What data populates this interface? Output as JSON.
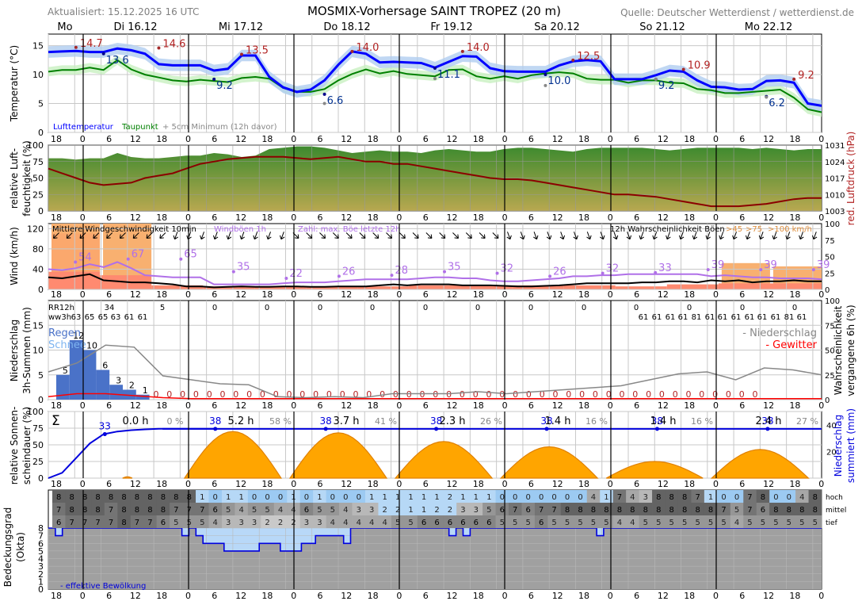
{
  "header": {
    "updated": "Aktualisiert: 15.12.2025 16 UTC",
    "title": "MOSMIX-Vorhersage SAINT TROPEZ (20 m)",
    "source": "Quelle: Deutscher Wetterdienst / wetterdienst.de"
  },
  "days": [
    "Mo",
    "Di 16.12",
    "Mi 17.12",
    "Do 18.12",
    "Fr 19.12",
    "Sa 20.12",
    "So 21.12",
    "Mo 22.12"
  ],
  "time_ticks": [
    "18",
    "0",
    "6",
    "12",
    "18",
    "0",
    "6",
    "12",
    "18",
    "0",
    "6",
    "12",
    "18",
    "0",
    "6",
    "12",
    "18",
    "0",
    "6",
    "12",
    "18",
    "0",
    "6",
    "12",
    "18",
    "0",
    "6",
    "12",
    "18",
    "0"
  ],
  "colors": {
    "temperature": "#0000ff",
    "dewpoint": "#008000",
    "pressure": "#8b0000",
    "humidity": "#4f8f3a",
    "gust": "#b070e8",
    "wind_fill": "#ff8a70",
    "gust_fill": "#f8b070",
    "sunshine": "#ffa500",
    "rain": "#4a72c8",
    "thunder": "#ff0000",
    "cloud_low": "#b8d8f8",
    "cloud_grey": "#a0a0a0"
  },
  "chart_data": [
    {
      "type": "line",
      "title": "Temperatur",
      "ylabel": "Temperatur (°C)",
      "ylim": [
        0,
        17
      ],
      "yticks": [
        0,
        5,
        10,
        15
      ],
      "x_hours": [
        0,
        3,
        6,
        9,
        12,
        15,
        18,
        21,
        24,
        27,
        30,
        33,
        36,
        39,
        42,
        45,
        48,
        51,
        54,
        57,
        60,
        63,
        66,
        69,
        72,
        75,
        78,
        81,
        84,
        87,
        90,
        93,
        96,
        99,
        102,
        105,
        108,
        111,
        114,
        117,
        120,
        123,
        126,
        129,
        132,
        135,
        138,
        141,
        144,
        147,
        150,
        153,
        156,
        159,
        162,
        165,
        168
      ],
      "series": [
        {
          "name": "Lufttemperatur",
          "values": [
            13.9,
            14.0,
            14.1,
            13.9,
            13.9,
            14.5,
            14.2,
            13.6,
            11.8,
            11.6,
            11.6,
            11.6,
            10.7,
            11.0,
            13.3,
            13.3,
            9.6,
            7.8,
            7.0,
            7.4,
            9.0,
            11.7,
            14.0,
            13.6,
            12.1,
            12.2,
            12.1,
            12.0,
            11.2,
            12.2,
            13.2,
            13.1,
            11.1,
            10.6,
            10.5,
            10.5,
            10.5,
            11.6,
            12.3,
            12.5,
            12.3,
            9.2,
            9.2,
            9.2,
            9.9,
            10.7,
            10.5,
            9.0,
            7.9,
            7.8,
            7.4,
            7.5,
            8.9,
            9.0,
            8.6,
            5.0,
            4.6
          ]
        },
        {
          "name": "Taupunkt",
          "values": [
            10.5,
            10.8,
            10.8,
            11.2,
            10.8,
            12.5,
            10.9,
            10.0,
            9.5,
            9.0,
            8.8,
            9.1,
            8.9,
            8.7,
            9.4,
            9.6,
            9.3,
            7.7,
            7.0,
            7.0,
            7.5,
            9.0,
            10.1,
            10.9,
            10.2,
            10.6,
            10.1,
            9.9,
            9.7,
            10.8,
            10.9,
            9.7,
            9.3,
            9.7,
            9.3,
            9.9,
            10.2,
            10.4,
            10.2,
            9.3,
            9.1,
            9.1,
            8.6,
            9.0,
            9.0,
            8.6,
            8.5,
            7.5,
            7.3,
            6.8,
            6.8,
            7.0,
            7.2,
            7.4,
            6.0,
            4.0,
            3.5
          ]
        }
      ],
      "labels_max": [
        {
          "x": "17 18",
          "value": "14.7"
        },
        {
          "x": "16 18",
          "value": "14.6"
        },
        {
          "x": "17 18",
          "value": "13.5"
        },
        {
          "x": "18 18",
          "value": "14.0"
        },
        {
          "x": "19 18",
          "value": "14.0"
        },
        {
          "x": "20 18",
          "value": "12.5"
        },
        {
          "x": "21 18",
          "value": "10.9"
        },
        {
          "x": "22 18",
          "value": "9.2"
        }
      ],
      "labels_min": [
        {
          "x": "16 06",
          "value": "13.6"
        },
        {
          "x": "17 06",
          "value": "9.2"
        },
        {
          "x": "18 06",
          "value": "6.6"
        },
        {
          "x": "19 06",
          "value": "11.1"
        },
        {
          "x": "20 06",
          "value": "10.0"
        },
        {
          "x": "21 06",
          "value": "9.2"
        },
        {
          "x": "22 06",
          "value": "6.2"
        }
      ],
      "ground_min": [
        5.0,
        9.3,
        8.1,
        9.2,
        6.1
      ],
      "legend": [
        "Lufttemperatur",
        "Taupunkt",
        "+ 5cm Minimum (12h davor)"
      ]
    },
    {
      "type": "area",
      "title": "Luftfeuchte / Luftdruck",
      "ylabel": "relative Luft- feuchtigkeit (%)",
      "y2label": "red. Luftdruck (hPa)",
      "ylim": [
        0,
        100
      ],
      "yticks": [
        0,
        25,
        50,
        75,
        100
      ],
      "y2lim": [
        1003,
        1031
      ],
      "y2ticks": [
        1003,
        1010,
        1017,
        1024,
        1031
      ],
      "series": [
        {
          "name": "Luftfeuchte",
          "values": [
            80,
            80,
            78,
            80,
            80,
            88,
            82,
            80,
            80,
            82,
            84,
            84,
            88,
            86,
            82,
            84,
            94,
            96,
            98,
            98,
            96,
            92,
            88,
            90,
            92,
            90,
            90,
            88,
            92,
            94,
            92,
            90,
            90,
            94,
            96,
            96,
            94,
            92,
            90,
            94,
            96,
            96,
            96,
            96,
            94,
            92,
            94,
            96,
            96,
            96,
            96,
            94,
            96,
            94,
            92,
            94,
            94
          ]
        },
        {
          "name": "Luftdruck",
          "values": [
            1021,
            1019,
            1017,
            1015,
            1014,
            1014.5,
            1015,
            1017,
            1018,
            1019,
            1021,
            1023,
            1024,
            1025,
            1025.5,
            1026,
            1026,
            1026,
            1025.5,
            1025,
            1025.5,
            1026,
            1025,
            1024,
            1024,
            1023,
            1023,
            1022,
            1021,
            1020,
            1019,
            1018,
            1017,
            1016.5,
            1016.5,
            1016,
            1015,
            1014,
            1013,
            1012,
            1011,
            1010,
            1010,
            1009.5,
            1009,
            1008,
            1007,
            1006,
            1005,
            1005,
            1005,
            1005.5,
            1006,
            1007,
            1008,
            1008.5,
            1008.5
          ]
        }
      ]
    },
    {
      "type": "line",
      "title": "Wind",
      "ylabel": "Wind (km/h)",
      "y2label": "Wahrscheinlichkeit Böen",
      "ylim": [
        0,
        130
      ],
      "yticks": [
        0,
        40,
        80,
        120
      ],
      "y2ticks": [
        0,
        25,
        50,
        75,
        100
      ],
      "legend": [
        "Mittlere Windgeschwindigkeit 10min",
        "Windböen 1h",
        "Zahl: max. Böe letzte 12h",
        "12h Wahrscheinlichkeit Böen",
        ">45",
        ">75",
        ">100 km/h"
      ],
      "gust_max_labels": [
        "54",
        "67",
        "65",
        "35",
        "22",
        "26",
        "28",
        "35",
        "32",
        "26",
        "32",
        "33",
        "39",
        "39",
        "39"
      ],
      "gust_prob_12h_gt45": [
        100,
        100,
        0,
        0,
        0,
        0,
        0,
        0,
        0,
        0,
        0,
        0,
        0,
        40,
        35
      ],
      "gust_prob_12h_gt75": [
        85,
        0,
        0,
        0,
        0,
        0,
        0,
        0,
        0,
        0,
        0,
        0,
        0,
        0,
        0
      ],
      "wind_fill": [
        35,
        28,
        8,
        6,
        5,
        5,
        6,
        8,
        8,
        8,
        8,
        6,
        10,
        12,
        12
      ],
      "series": [
        {
          "name": "Mittlere Windgeschwindigkeit 10min",
          "values": [
            24,
            22,
            26,
            30,
            18,
            16,
            14,
            14,
            12,
            10,
            6,
            6,
            4,
            5,
            6,
            5,
            5,
            6,
            6,
            5,
            5,
            6,
            6,
            6,
            8,
            10,
            8,
            10,
            10,
            10,
            8,
            8,
            8,
            7,
            6,
            6,
            7,
            8,
            10,
            12,
            12,
            12,
            12,
            14,
            14,
            16,
            16,
            14,
            18,
            16,
            18,
            14,
            16,
            16,
            18,
            16,
            16
          ]
        },
        {
          "name": "Windböen 1h",
          "values": [
            40,
            38,
            42,
            50,
            44,
            54,
            42,
            28,
            26,
            24,
            24,
            24,
            10,
            10,
            10,
            10,
            10,
            12,
            14,
            14,
            14,
            16,
            18,
            20,
            20,
            20,
            20,
            22,
            24,
            24,
            22,
            22,
            18,
            16,
            16,
            18,
            20,
            22,
            26,
            26,
            28,
            28,
            30,
            30,
            30,
            30,
            30,
            30,
            26,
            28,
            26,
            24,
            24,
            22,
            22,
            22,
            20
          ]
        }
      ]
    },
    {
      "type": "bar",
      "title": "Niederschlag",
      "ylabel": "Niederschlag 3h-Summen (mm)",
      "y2label": "Wahrscheinlichkeit vergangene 6h (%)",
      "ylim": [
        0,
        20
      ],
      "yticks": [
        0,
        5,
        10,
        15
      ],
      "y2ticks": [
        0,
        25,
        50,
        75,
        100
      ],
      "rr12h_label": "RR12h",
      "ww3h_label": "ww3h",
      "rr12h": [
        "34",
        "5",
        "0",
        "0",
        "0",
        "0",
        "0",
        "0",
        "0",
        "0",
        "0",
        "0",
        "0",
        "0"
      ],
      "ww3h": [
        "63",
        "65",
        "65",
        "63",
        "61",
        "61",
        "61",
        "61",
        "61",
        "61",
        "81",
        "61",
        "61",
        "61",
        "61",
        "61",
        "61",
        "81",
        "61"
      ],
      "legend": [
        "Regen",
        "Schnee",
        "- Niederschlag",
        "- Gewitter"
      ],
      "bar_values": [
        5,
        12,
        10,
        6,
        3,
        2,
        1,
        0,
        0,
        0,
        0,
        0,
        0,
        0,
        0,
        0,
        0,
        0,
        0,
        0,
        0,
        0,
        0,
        0,
        0,
        0,
        0,
        0,
        0,
        0,
        0,
        0,
        0,
        0,
        0,
        0,
        0,
        0,
        0,
        0,
        0,
        0,
        0,
        0,
        0,
        0,
        0,
        0,
        0,
        0,
        0,
        0,
        0,
        0
      ],
      "prob_6h": [
        28,
        37,
        55,
        53,
        24,
        20,
        16,
        15,
        3,
        2,
        3,
        2,
        6,
        6,
        6,
        8,
        6,
        8,
        10,
        12,
        14,
        20,
        26,
        28,
        20,
        32,
        30,
        25
      ],
      "thunder_prob_6h": [
        3,
        6,
        6,
        4,
        2,
        1,
        1,
        1,
        1,
        1,
        1,
        1,
        1,
        1,
        1,
        1,
        1,
        1,
        1,
        1,
        1,
        1,
        1,
        1,
        1,
        1,
        1,
        1
      ]
    },
    {
      "type": "area",
      "title": "Sonnenscheindauer",
      "ylabel": "relative Sonnen- scheindauer (%)",
      "y2label": "Niederschlag summiert (mm)",
      "ylim": [
        0,
        100
      ],
      "yticks": [
        0,
        25,
        50,
        75,
        100
      ],
      "y2ticks": [
        0,
        20,
        40
      ],
      "sigma": "Σ",
      "daily_sun_hours": [
        "0.0 h",
        "5.2 h",
        "3.7 h",
        "2.3 h",
        "1.4 h",
        "1.4 h",
        "2.4 h"
      ],
      "daily_sun_percent": [
        "0 %",
        "58 %",
        "41 %",
        "26 %",
        "16 %",
        "16 %",
        "27 %"
      ],
      "precip_sum_labels": [
        "33",
        "38",
        "38",
        "38",
        "38",
        "38",
        "38"
      ],
      "sunshine_days": [
        {
          "peak": 2,
          "width": 1
        },
        {
          "peak": 70,
          "width": 10
        },
        {
          "peak": 68,
          "width": 10
        },
        {
          "peak": 55,
          "width": 10
        },
        {
          "peak": 47,
          "width": 10
        },
        {
          "peak": 25,
          "width": 10
        },
        {
          "peak": 43,
          "width": 10
        }
      ],
      "precip_sum_curve": [
        0,
        4,
        15,
        26,
        33,
        35,
        36,
        36.6,
        37,
        37,
        37,
        37,
        37
      ]
    },
    {
      "type": "heatmap",
      "title": "Bedeckungsgrad",
      "ylabel": "Bedeckungsgrad (Okta)",
      "yticks": [
        0,
        1,
        2,
        3,
        4,
        5,
        6,
        7,
        8
      ],
      "rows": [
        "hoch",
        "mittel",
        "tief"
      ],
      "legend": [
        "- effektive Bewölkung"
      ],
      "hoch": [
        8,
        8,
        8,
        8,
        8,
        8,
        8,
        8,
        8,
        8,
        8,
        1,
        0,
        1,
        1,
        0,
        0,
        0,
        1,
        0,
        1,
        0,
        0,
        0,
        1,
        1,
        1,
        1,
        1,
        1,
        2,
        1,
        1,
        1,
        0,
        0,
        0,
        0,
        0,
        0,
        0,
        4,
        1,
        7,
        4,
        3,
        8,
        8,
        8,
        7,
        1,
        0,
        0,
        7,
        8,
        0,
        0,
        4,
        8
      ],
      "mittel": [
        7,
        8,
        8,
        8,
        7,
        8,
        8,
        8,
        8,
        7,
        7,
        7,
        6,
        5,
        4,
        5,
        5,
        4,
        4,
        6,
        5,
        5,
        4,
        3,
        3,
        2,
        2,
        1,
        1,
        2,
        2,
        3,
        3,
        5,
        6,
        7,
        6,
        7,
        7,
        8,
        8,
        8,
        8,
        8,
        8,
        8,
        8,
        8,
        8,
        8,
        8,
        7,
        5,
        7,
        6,
        8,
        8,
        8,
        8
      ],
      "tief": [
        6,
        7,
        7,
        7,
        7,
        8,
        7,
        7,
        6,
        5,
        5,
        5,
        4,
        3,
        3,
        3,
        2,
        2,
        2,
        3,
        3,
        4,
        4,
        4,
        4,
        4,
        5,
        5,
        6,
        6,
        6,
        6,
        6,
        6,
        5,
        5,
        5,
        6,
        5,
        5,
        5,
        5,
        5,
        4,
        4,
        5,
        5,
        5,
        5,
        5,
        5,
        5,
        4,
        5,
        5,
        5,
        5,
        5,
        5
      ],
      "effective": [
        8,
        7,
        8,
        8,
        8,
        8,
        8,
        8,
        8,
        8,
        8,
        8,
        8,
        8,
        8,
        8,
        8,
        8,
        8,
        7,
        8,
        7,
        6,
        6,
        6,
        5,
        5,
        5,
        5,
        5,
        6,
        6,
        6,
        5,
        5,
        5,
        6,
        6,
        7,
        7,
        7,
        7,
        6,
        8,
        8,
        8,
        8,
        8,
        8,
        8,
        8,
        8,
        8,
        8,
        8,
        8,
        8,
        7,
        8,
        7,
        8,
        8,
        8,
        8,
        8,
        8,
        8,
        8,
        8,
        8,
        8,
        8,
        8,
        8,
        8,
        8,
        8,
        8,
        7,
        8,
        8,
        8,
        8,
        8,
        8,
        8,
        8,
        8,
        8,
        8,
        8,
        8,
        8,
        8,
        8,
        8,
        8,
        8,
        8,
        8,
        8,
        8,
        8,
        8,
        8,
        8,
        8,
        8,
        8,
        8
      ]
    }
  ]
}
